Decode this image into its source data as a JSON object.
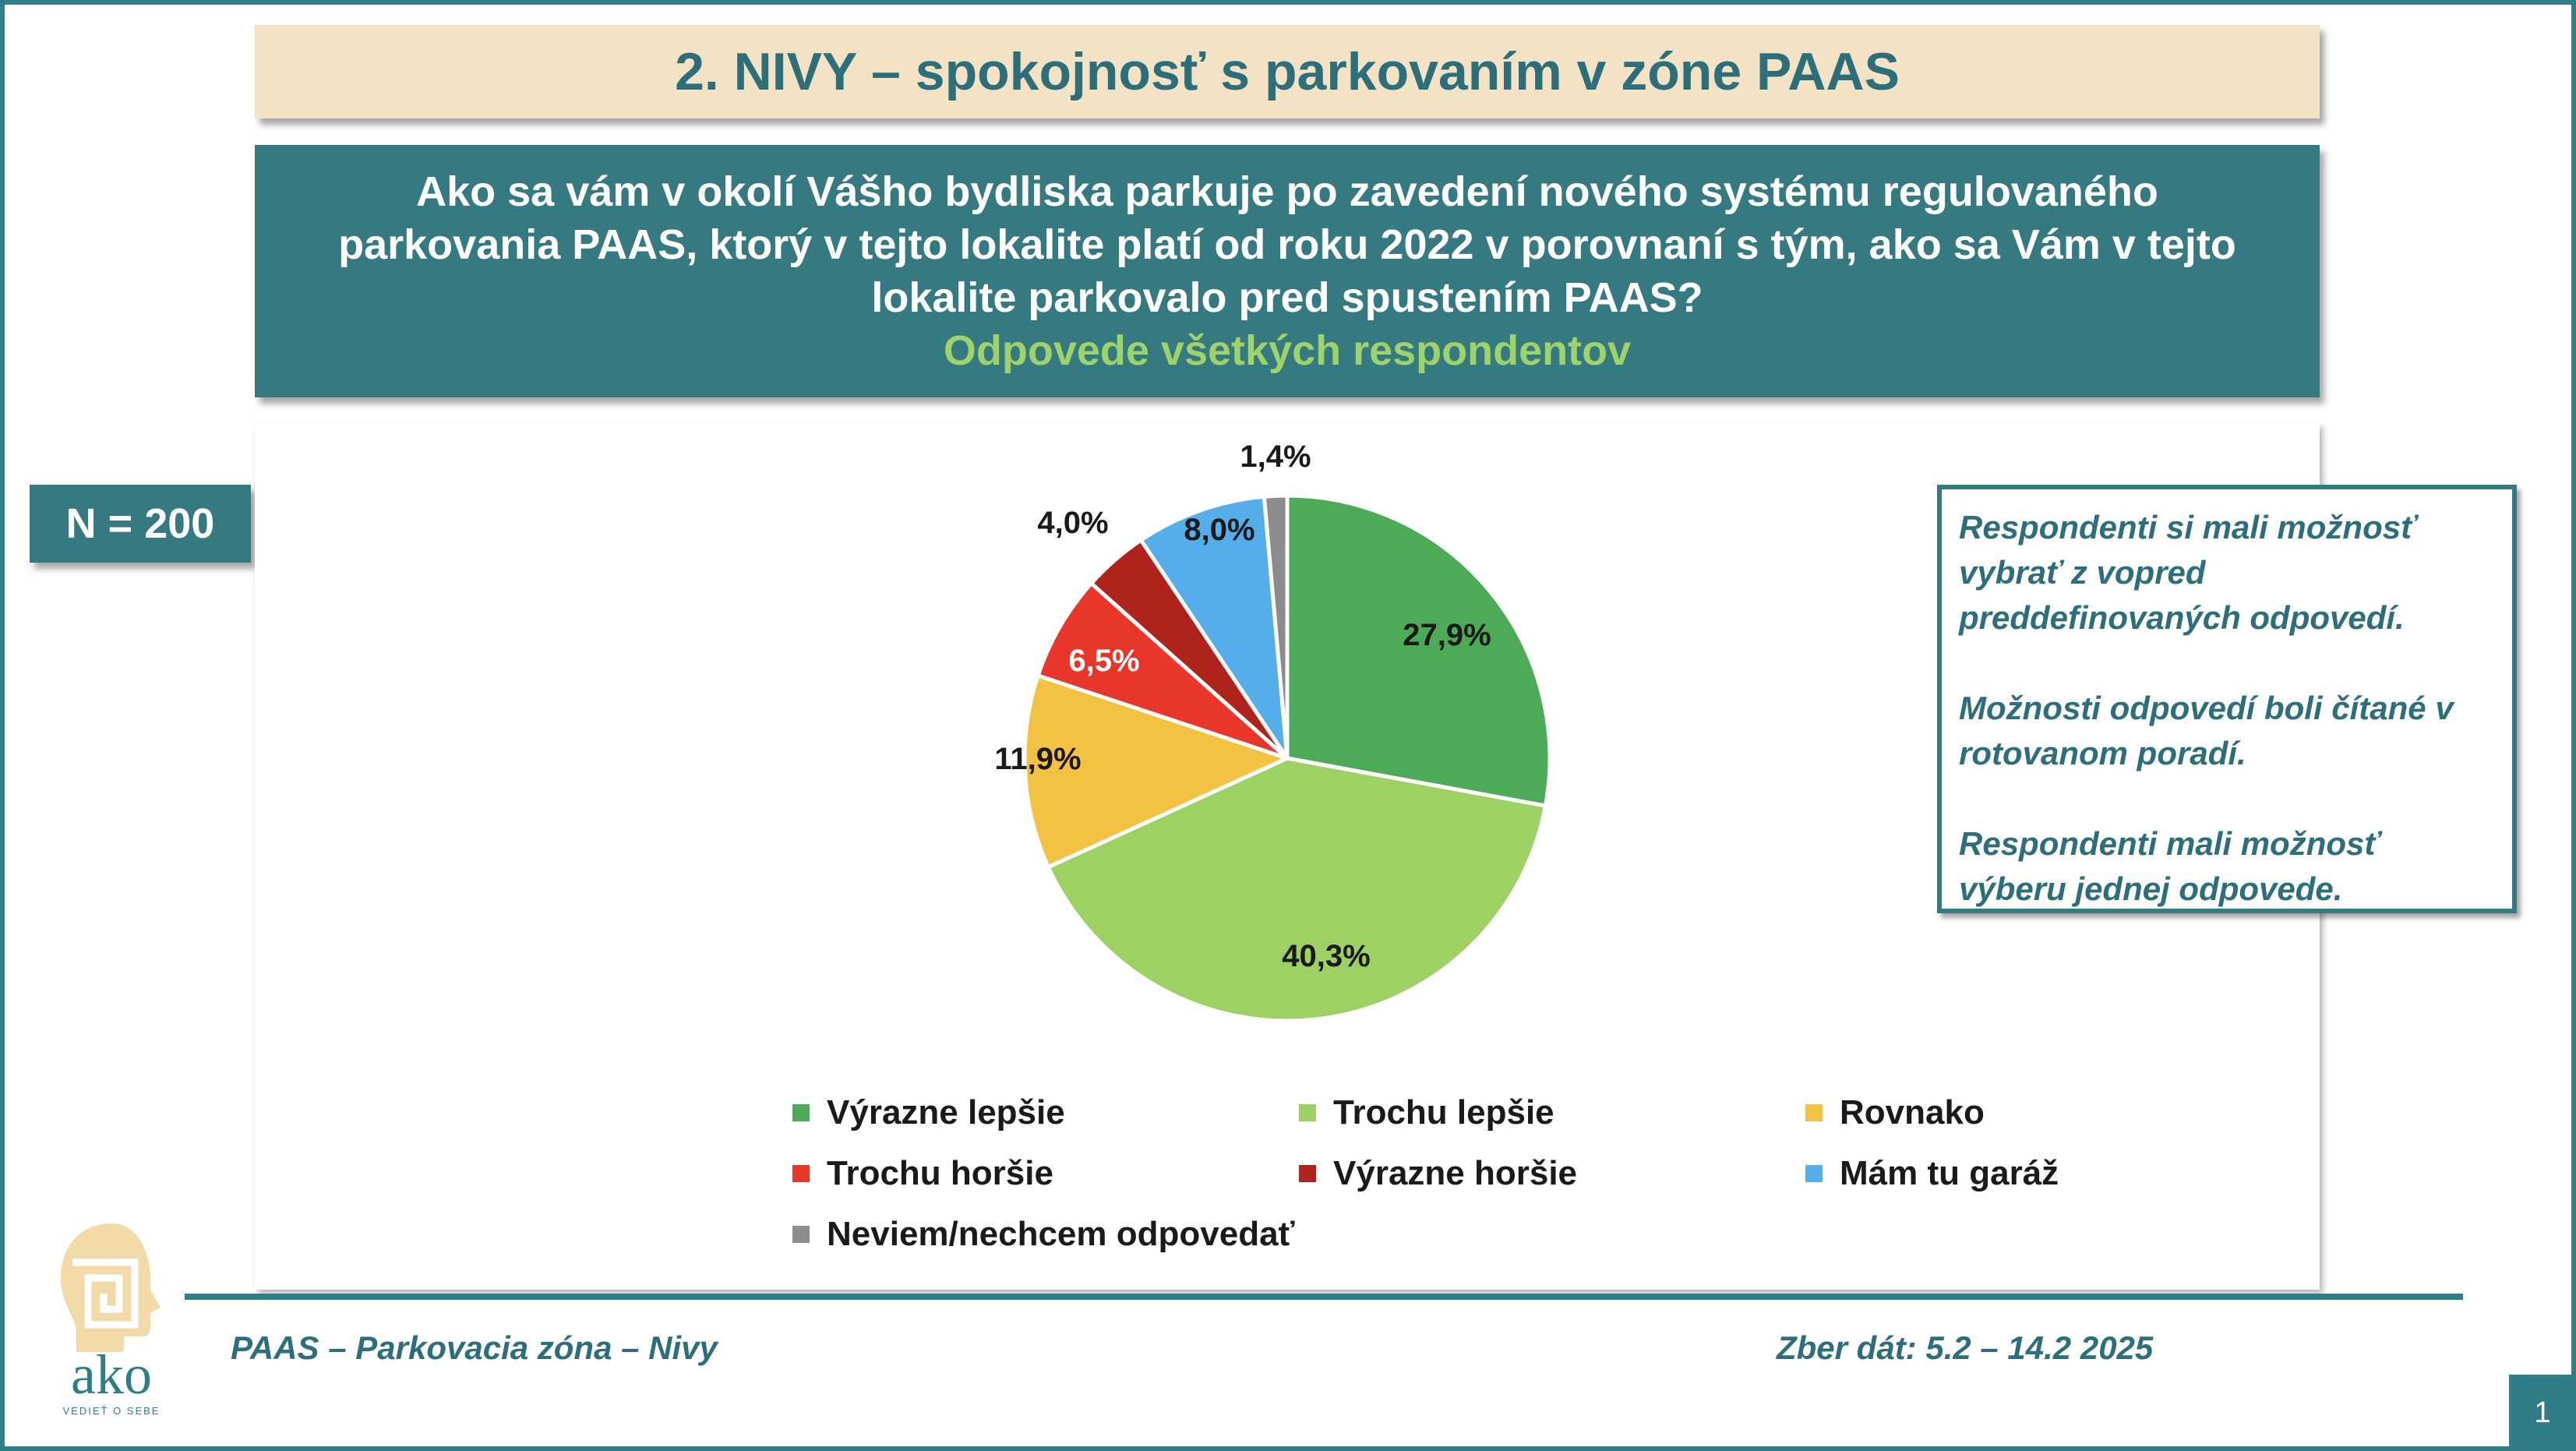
{
  "title": "2. NIVY – spokojnosť s parkovaním v zóne PAAS",
  "question": {
    "text": "Ako sa vám v okolí Vášho bydliska parkuje po zavedení nového systému regulovaného parkovania PAAS, ktorý v tejto lokalite platí od roku 2022 v porovnaní s tým, ako sa Vám v tejto lokalite parkovalo pred spustením PAAS?",
    "subtitle": "Odpovede všetkých respondentov"
  },
  "sample": "N = 200",
  "note": {
    "p1": "Respondenti si mali možnosť vybrať z vopred preddefinovaných odpovedí.",
    "p2": "Možnosti odpovedí boli čítané v rotovanom poradí.",
    "p3": "Respondenti mali možnosť výberu jednej odpovede."
  },
  "footer": {
    "left": "PAAS – Parkovacia zóna – Nivy",
    "right": "Zber dát: 5.2 – 14.2 2025",
    "page": "1"
  },
  "logo": {
    "text": "ako",
    "tagline": "VEDIEŤ O SEBE"
  },
  "colors": {
    "accent": "#2f7d86",
    "title_bg": "#f4e2c4",
    "subtitle_green": "#9ed26b"
  },
  "chart_data": {
    "type": "pie",
    "title": "",
    "legend_position": "bottom",
    "slices": [
      {
        "label": "Výrazne lepšie",
        "value": 27.9,
        "display": "27,9%",
        "color": "#4daa57"
      },
      {
        "label": "Trochu lepšie",
        "value": 40.3,
        "display": "40,3%",
        "color": "#9ed163"
      },
      {
        "label": "Rovnako",
        "value": 11.9,
        "display": "11,9%",
        "color": "#f4c242"
      },
      {
        "label": "Trochu horšie",
        "value": 6.5,
        "display": "6,5%",
        "color": "#e8372a"
      },
      {
        "label": "Výrazne horšie",
        "value": 4.0,
        "display": "4,0%",
        "color": "#b0231d"
      },
      {
        "label": "Mám tu garáž",
        "value": 8.0,
        "display": "8,0%",
        "color": "#55adea"
      },
      {
        "label": "Neviem/nechcem odpovedať",
        "value": 1.4,
        "display": "1,4%",
        "color": "#8c8c8c"
      }
    ]
  }
}
